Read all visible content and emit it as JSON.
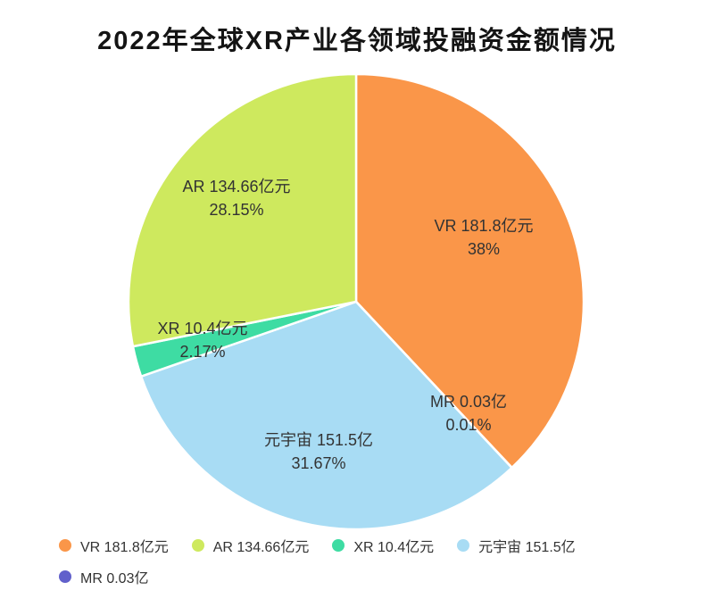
{
  "chart_data": {
    "type": "pie",
    "title": "2022年全球XR产业各领域投融资金额情况",
    "direction": "clockwise",
    "start_angle_deg": 90,
    "legend_position": "bottom-left",
    "slices": [
      {
        "name": "VR",
        "value": 181.8,
        "percent": 38,
        "label": "VR 181.8亿元",
        "percent_label": "38%",
        "color": "#FA9649"
      },
      {
        "name": "MR",
        "value": 0.03,
        "percent": 0.01,
        "label": "MR 0.03亿",
        "percent_label": "0.01%",
        "color": "#6160CB"
      },
      {
        "name": "元宇宙",
        "value": 151.5,
        "percent": 31.67,
        "label": "元宇宙 151.5亿",
        "percent_label": "31.67%",
        "color": "#A8DCF4"
      },
      {
        "name": "XR",
        "value": 10.4,
        "percent": 2.17,
        "label": "XR 10.4亿元",
        "percent_label": "2.17%",
        "color": "#3EDCA3"
      },
      {
        "name": "AR",
        "value": 134.66,
        "percent": 28.15,
        "label": "AR 134.66亿元",
        "percent_label": "28.15%",
        "color": "#CEE95E"
      }
    ],
    "legend": [
      {
        "label": "VR 181.8亿元",
        "color": "#FA9649"
      },
      {
        "label": "AR 134.66亿元",
        "color": "#CEE95E"
      },
      {
        "label": "XR 10.4亿元",
        "color": "#3EDCA3"
      },
      {
        "label": "元宇宙 151.5亿",
        "color": "#A8DCF4"
      },
      {
        "label": "MR 0.03亿",
        "color": "#6160CB"
      }
    ]
  }
}
